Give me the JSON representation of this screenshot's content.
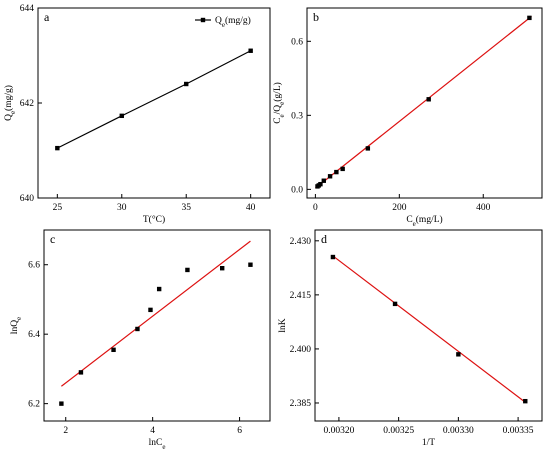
{
  "chart_data": [
    {
      "panel": "a",
      "type": "line",
      "x": [
        25,
        30,
        35,
        40
      ],
      "y": [
        641.05,
        641.73,
        642.4,
        643.1
      ],
      "xlabel": "T(°C)",
      "ylabel": "Qe(mg/g)",
      "xlim": [
        23.5,
        41.5
      ],
      "ylim": [
        640,
        644
      ],
      "xticks": [
        25,
        30,
        35,
        40
      ],
      "yticks": [
        640,
        642,
        644
      ],
      "legend": "Qe(mg/g)",
      "legend_position": "top-right",
      "line_color": "#000000"
    },
    {
      "panel": "b",
      "type": "scatter",
      "x": [
        5,
        8,
        12,
        20,
        35,
        50,
        65,
        125,
        270,
        510
      ],
      "y": [
        0.012,
        0.016,
        0.021,
        0.035,
        0.053,
        0.07,
        0.083,
        0.166,
        0.365,
        0.695
      ],
      "fit": [
        [
          0,
          0.005
        ],
        [
          515,
          0.701
        ]
      ],
      "xlabel": "Ce(mg/L)",
      "ylabel": "Ce/Qe(g/L)",
      "xlim": [
        -20,
        540
      ],
      "ylim": [
        -0.035,
        0.735
      ],
      "xticks": [
        0,
        200,
        400
      ],
      "yticks": [
        0.0,
        0.3,
        0.6
      ],
      "fit_color": "#dd1111"
    },
    {
      "panel": "c",
      "type": "scatter",
      "x": [
        1.9,
        2.35,
        3.1,
        3.65,
        3.95,
        4.15,
        4.8,
        5.6,
        6.25
      ],
      "y": [
        6.2,
        6.29,
        6.355,
        6.415,
        6.47,
        6.53,
        6.585,
        6.59,
        6.6
      ],
      "fit": [
        [
          1.9,
          6.25
        ],
        [
          6.25,
          6.668
        ]
      ],
      "xlabel": "lnCe",
      "ylabel": "lnQe",
      "xlim": [
        1.5,
        6.7
      ],
      "ylim": [
        6.15,
        6.7
      ],
      "xticks": [
        2,
        4,
        6
      ],
      "yticks": [
        6.2,
        6.4,
        6.6
      ],
      "fit_color": "#dd1111"
    },
    {
      "panel": "d",
      "type": "scatter",
      "x": [
        0.003195,
        0.003247,
        0.0033,
        0.003356
      ],
      "y": [
        2.4255,
        2.4125,
        2.3985,
        2.3855
      ],
      "fit": [
        [
          0.003195,
          2.4258
        ],
        [
          0.003356,
          2.3852
        ]
      ],
      "xlabel": "1/T",
      "ylabel": "lnK",
      "xlim": [
        0.00318,
        0.00337
      ],
      "ylim": [
        2.38,
        2.433
      ],
      "xticks": [
        "0.00320",
        "0.00325",
        "0.00330",
        "0.00335"
      ],
      "yticks": [
        "2.385",
        "2.400",
        "2.415",
        "2.430"
      ],
      "fit_color": "#dd1111"
    }
  ]
}
